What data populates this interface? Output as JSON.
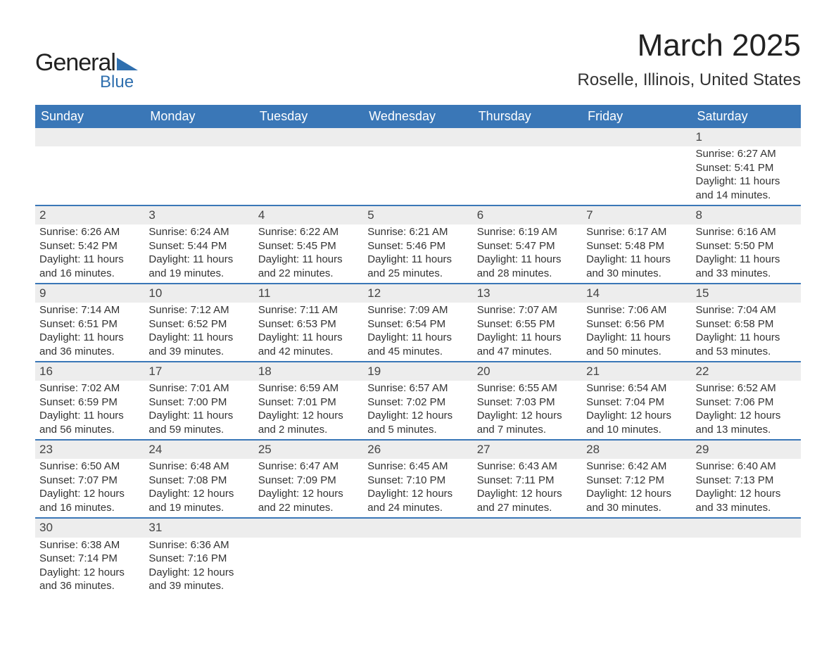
{
  "logo": {
    "main": "General",
    "sub": "Blue"
  },
  "title": "March 2025",
  "location": "Roselle, Illinois, United States",
  "colors": {
    "header_bg": "#3a77b7",
    "header_text": "#ffffff",
    "daynum_bg": "#ededed",
    "row_border": "#3a77b7",
    "text": "#333333",
    "logo_accent": "#2f6fae"
  },
  "fonts": {
    "title_size": 44,
    "location_size": 24,
    "header_size": 18,
    "body_size": 15
  },
  "weekdays": [
    "Sunday",
    "Monday",
    "Tuesday",
    "Wednesday",
    "Thursday",
    "Friday",
    "Saturday"
  ],
  "weeks": [
    [
      null,
      null,
      null,
      null,
      null,
      null,
      {
        "n": "1",
        "sr": "Sunrise: 6:27 AM",
        "ss": "Sunset: 5:41 PM",
        "d1": "Daylight: 11 hours",
        "d2": "and 14 minutes."
      }
    ],
    [
      {
        "n": "2",
        "sr": "Sunrise: 6:26 AM",
        "ss": "Sunset: 5:42 PM",
        "d1": "Daylight: 11 hours",
        "d2": "and 16 minutes."
      },
      {
        "n": "3",
        "sr": "Sunrise: 6:24 AM",
        "ss": "Sunset: 5:44 PM",
        "d1": "Daylight: 11 hours",
        "d2": "and 19 minutes."
      },
      {
        "n": "4",
        "sr": "Sunrise: 6:22 AM",
        "ss": "Sunset: 5:45 PM",
        "d1": "Daylight: 11 hours",
        "d2": "and 22 minutes."
      },
      {
        "n": "5",
        "sr": "Sunrise: 6:21 AM",
        "ss": "Sunset: 5:46 PM",
        "d1": "Daylight: 11 hours",
        "d2": "and 25 minutes."
      },
      {
        "n": "6",
        "sr": "Sunrise: 6:19 AM",
        "ss": "Sunset: 5:47 PM",
        "d1": "Daylight: 11 hours",
        "d2": "and 28 minutes."
      },
      {
        "n": "7",
        "sr": "Sunrise: 6:17 AM",
        "ss": "Sunset: 5:48 PM",
        "d1": "Daylight: 11 hours",
        "d2": "and 30 minutes."
      },
      {
        "n": "8",
        "sr": "Sunrise: 6:16 AM",
        "ss": "Sunset: 5:50 PM",
        "d1": "Daylight: 11 hours",
        "d2": "and 33 minutes."
      }
    ],
    [
      {
        "n": "9",
        "sr": "Sunrise: 7:14 AM",
        "ss": "Sunset: 6:51 PM",
        "d1": "Daylight: 11 hours",
        "d2": "and 36 minutes."
      },
      {
        "n": "10",
        "sr": "Sunrise: 7:12 AM",
        "ss": "Sunset: 6:52 PM",
        "d1": "Daylight: 11 hours",
        "d2": "and 39 minutes."
      },
      {
        "n": "11",
        "sr": "Sunrise: 7:11 AM",
        "ss": "Sunset: 6:53 PM",
        "d1": "Daylight: 11 hours",
        "d2": "and 42 minutes."
      },
      {
        "n": "12",
        "sr": "Sunrise: 7:09 AM",
        "ss": "Sunset: 6:54 PM",
        "d1": "Daylight: 11 hours",
        "d2": "and 45 minutes."
      },
      {
        "n": "13",
        "sr": "Sunrise: 7:07 AM",
        "ss": "Sunset: 6:55 PM",
        "d1": "Daylight: 11 hours",
        "d2": "and 47 minutes."
      },
      {
        "n": "14",
        "sr": "Sunrise: 7:06 AM",
        "ss": "Sunset: 6:56 PM",
        "d1": "Daylight: 11 hours",
        "d2": "and 50 minutes."
      },
      {
        "n": "15",
        "sr": "Sunrise: 7:04 AM",
        "ss": "Sunset: 6:58 PM",
        "d1": "Daylight: 11 hours",
        "d2": "and 53 minutes."
      }
    ],
    [
      {
        "n": "16",
        "sr": "Sunrise: 7:02 AM",
        "ss": "Sunset: 6:59 PM",
        "d1": "Daylight: 11 hours",
        "d2": "and 56 minutes."
      },
      {
        "n": "17",
        "sr": "Sunrise: 7:01 AM",
        "ss": "Sunset: 7:00 PM",
        "d1": "Daylight: 11 hours",
        "d2": "and 59 minutes."
      },
      {
        "n": "18",
        "sr": "Sunrise: 6:59 AM",
        "ss": "Sunset: 7:01 PM",
        "d1": "Daylight: 12 hours",
        "d2": "and 2 minutes."
      },
      {
        "n": "19",
        "sr": "Sunrise: 6:57 AM",
        "ss": "Sunset: 7:02 PM",
        "d1": "Daylight: 12 hours",
        "d2": "and 5 minutes."
      },
      {
        "n": "20",
        "sr": "Sunrise: 6:55 AM",
        "ss": "Sunset: 7:03 PM",
        "d1": "Daylight: 12 hours",
        "d2": "and 7 minutes."
      },
      {
        "n": "21",
        "sr": "Sunrise: 6:54 AM",
        "ss": "Sunset: 7:04 PM",
        "d1": "Daylight: 12 hours",
        "d2": "and 10 minutes."
      },
      {
        "n": "22",
        "sr": "Sunrise: 6:52 AM",
        "ss": "Sunset: 7:06 PM",
        "d1": "Daylight: 12 hours",
        "d2": "and 13 minutes."
      }
    ],
    [
      {
        "n": "23",
        "sr": "Sunrise: 6:50 AM",
        "ss": "Sunset: 7:07 PM",
        "d1": "Daylight: 12 hours",
        "d2": "and 16 minutes."
      },
      {
        "n": "24",
        "sr": "Sunrise: 6:48 AM",
        "ss": "Sunset: 7:08 PM",
        "d1": "Daylight: 12 hours",
        "d2": "and 19 minutes."
      },
      {
        "n": "25",
        "sr": "Sunrise: 6:47 AM",
        "ss": "Sunset: 7:09 PM",
        "d1": "Daylight: 12 hours",
        "d2": "and 22 minutes."
      },
      {
        "n": "26",
        "sr": "Sunrise: 6:45 AM",
        "ss": "Sunset: 7:10 PM",
        "d1": "Daylight: 12 hours",
        "d2": "and 24 minutes."
      },
      {
        "n": "27",
        "sr": "Sunrise: 6:43 AM",
        "ss": "Sunset: 7:11 PM",
        "d1": "Daylight: 12 hours",
        "d2": "and 27 minutes."
      },
      {
        "n": "28",
        "sr": "Sunrise: 6:42 AM",
        "ss": "Sunset: 7:12 PM",
        "d1": "Daylight: 12 hours",
        "d2": "and 30 minutes."
      },
      {
        "n": "29",
        "sr": "Sunrise: 6:40 AM",
        "ss": "Sunset: 7:13 PM",
        "d1": "Daylight: 12 hours",
        "d2": "and 33 minutes."
      }
    ],
    [
      {
        "n": "30",
        "sr": "Sunrise: 6:38 AM",
        "ss": "Sunset: 7:14 PM",
        "d1": "Daylight: 12 hours",
        "d2": "and 36 minutes."
      },
      {
        "n": "31",
        "sr": "Sunrise: 6:36 AM",
        "ss": "Sunset: 7:16 PM",
        "d1": "Daylight: 12 hours",
        "d2": "and 39 minutes."
      },
      null,
      null,
      null,
      null,
      null
    ]
  ]
}
